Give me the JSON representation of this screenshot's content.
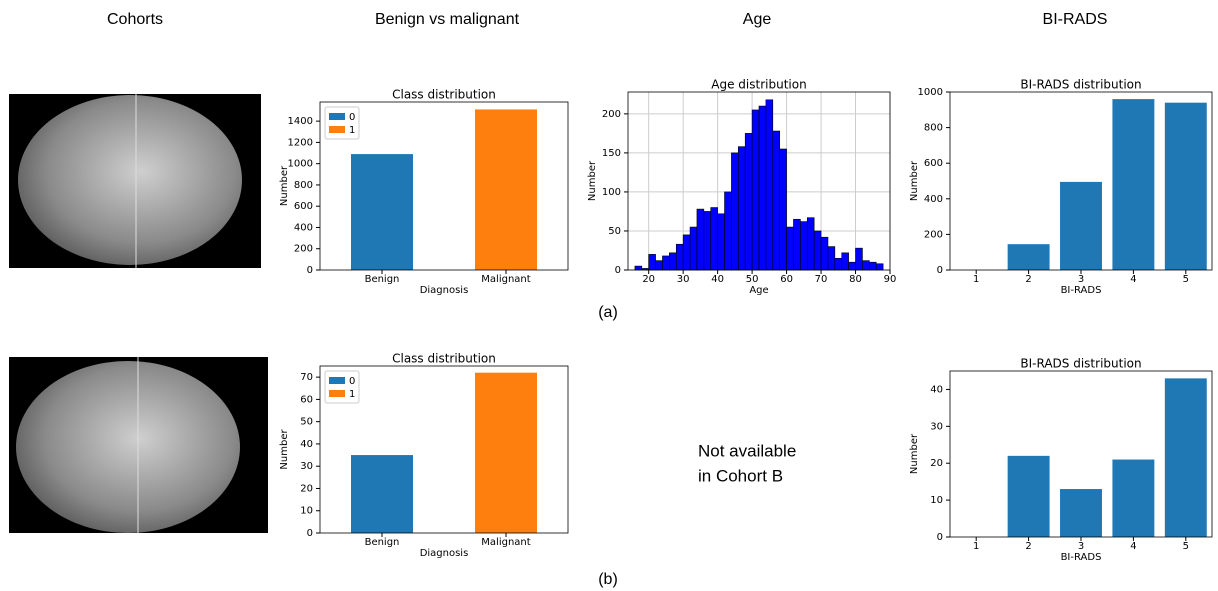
{
  "headers": [
    "Cohorts",
    "Benign vs malignant",
    "Age",
    "BI-RADS"
  ],
  "row_labels": [
    "(a)",
    "(b)"
  ],
  "note": [
    "Not available",
    "in Cohort B"
  ],
  "chart_data": [
    {
      "type": "bar",
      "title": "Class distribution",
      "xlabel": "Diagnosis",
      "ylabel": "Number",
      "categories": [
        "Benign",
        "Malignant"
      ],
      "series": [
        {
          "name": "0",
          "color": "#1f77b4",
          "values": [
            1090,
            null
          ]
        },
        {
          "name": "1",
          "color": "#ff7f0e",
          "values": [
            null,
            1510
          ]
        }
      ],
      "ylim": [
        0,
        1580
      ],
      "yticks": [
        0,
        200,
        400,
        600,
        800,
        1000,
        1200,
        1400
      ],
      "legend": "upper left"
    },
    {
      "type": "histogram",
      "title": "Age distribution",
      "xlabel": "Age",
      "ylabel": "Number",
      "bins": [
        16,
        18,
        20,
        22,
        24,
        26,
        28,
        30,
        32,
        34,
        36,
        38,
        40,
        42,
        44,
        46,
        48,
        50,
        52,
        54,
        56,
        58,
        60,
        62,
        64,
        66,
        68,
        70,
        72,
        74,
        76,
        78,
        80,
        82,
        84,
        86,
        88
      ],
      "values": [
        5,
        2,
        20,
        12,
        18,
        22,
        33,
        45,
        55,
        78,
        75,
        80,
        72,
        100,
        150,
        158,
        175,
        205,
        210,
        218,
        178,
        155,
        55,
        65,
        62,
        67,
        50,
        42,
        30,
        15,
        22,
        10,
        28,
        12,
        10,
        8
      ],
      "color": "#0000ff",
      "xlim": [
        14,
        90
      ],
      "xticks": [
        20,
        30,
        40,
        50,
        60,
        70,
        80,
        90
      ],
      "ylim": [
        0,
        228
      ],
      "yticks": [
        0,
        50,
        100,
        150,
        200
      ],
      "grid": true
    },
    {
      "type": "bar",
      "title": "BI-RADS distribution",
      "xlabel": "BI-RADS",
      "ylabel": "Number",
      "categories": [
        "1",
        "2",
        "3",
        "4",
        "5"
      ],
      "values": [
        0,
        145,
        495,
        960,
        940
      ],
      "color": "#1f77b4",
      "ylim": [
        0,
        1000
      ],
      "yticks": [
        0,
        200,
        400,
        600,
        800,
        1000
      ]
    },
    {
      "type": "bar",
      "title": "Class distribution",
      "xlabel": "Diagnosis",
      "ylabel": "Number",
      "categories": [
        "Benign",
        "Malignant"
      ],
      "series": [
        {
          "name": "0",
          "color": "#1f77b4",
          "values": [
            35,
            null
          ]
        },
        {
          "name": "1",
          "color": "#ff7f0e",
          "values": [
            null,
            72
          ]
        }
      ],
      "ylim": [
        0,
        75
      ],
      "yticks": [
        0,
        10,
        20,
        30,
        40,
        50,
        60,
        70
      ],
      "legend": "upper left"
    },
    {
      "type": "bar",
      "title": "BI-RADS distribution",
      "xlabel": "BI-RADS",
      "ylabel": "Number",
      "categories": [
        "1",
        "2",
        "3",
        "4",
        "5"
      ],
      "values": [
        0,
        22,
        13,
        21,
        43
      ],
      "color": "#1f77b4",
      "ylim": [
        0,
        45
      ],
      "yticks": [
        0,
        10,
        20,
        30,
        40
      ]
    }
  ]
}
